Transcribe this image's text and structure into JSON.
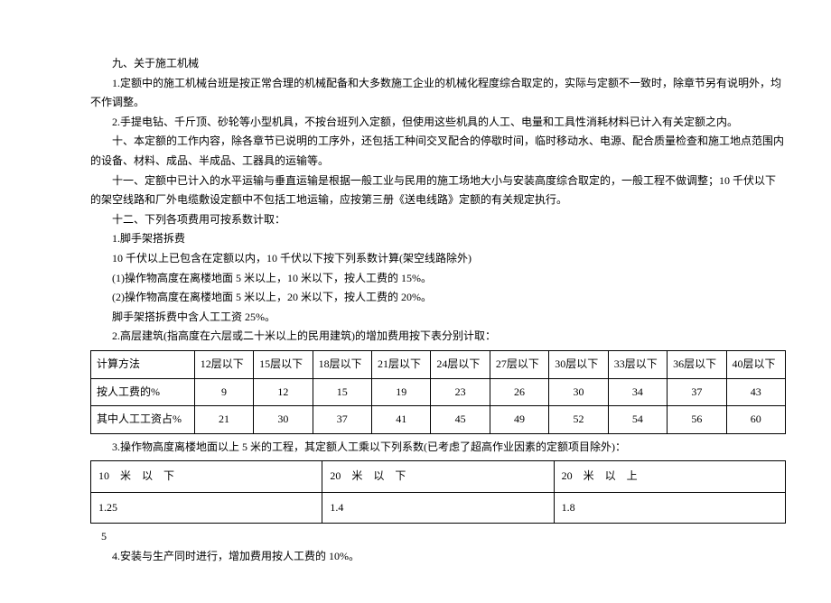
{
  "text": {
    "h9": "九、关于施工机械",
    "p1": "1.定额中的施工机械台班是按正常合理的机械配备和大多数施工企业的机械化程度综合取定的，实际与定额不一致时，除章节另有说明外，均不作调整。",
    "p2": "2.手提电钻、千斤顶、砂轮等小型机具，不按台班列入定额，但使用这些机具的人工、电量和工具性消耗材料已计入有关定额之内。",
    "p10": "十、本定额的工作内容，除各章节已说明的工序外，还包括工种间交叉配合的停歇时间，临时移动水、电源、配合质量检查和施工地点范围内的设备、材料、成品、半成品、工器具的运输等。",
    "p11": "十一、定额中已计入的水平运输与垂直运输是根据一般工业与民用的施工场地大小与安装高度综合取定的，一般工程不做调整；10 千伏以下的架空线路和厂外电缆敷设定额中不包括工地运输，应按第三册《送电线路》定额的有关规定执行。",
    "p12": "十二、下列各项费用可按系数计取：",
    "p12_1": "1.脚手架搭拆费",
    "p12_1a": "10 千伏以上已包含在定额以内，10 千伏以下按下列系数计算(架空线路除外)",
    "p12_1b": "(1)操作物高度在离楼地面 5 米以上，10 米以下，按人工费的 15%。",
    "p12_1c": "(2)操作物高度在离楼地面 5 米以上，20 米以下，按人工费的 20%。",
    "p12_1d": "脚手架搭拆费中含人工工资 25%。",
    "p12_2": "2.高层建筑(指高度在六层或二十米以上的民用建筑)的增加费用按下表分别计取：",
    "p12_3": "3.操作物高度离楼地面以上 5 米的工程，其定额人工乘以下列系数(已考虑了超高作业因素的定额项目除外)：",
    "pagenum": "5",
    "p12_4": "4.安装与生产同时进行，增加费用按人工费的 10%。"
  },
  "table1": {
    "headers": [
      "计算方法",
      "12层以下",
      "15层以下",
      "18层以下",
      "21层以下",
      "24层以下",
      "27层以下",
      "30层以下",
      "33层以下",
      "36层以下",
      "40层以下"
    ],
    "rows": [
      {
        "label": "按人工费的%",
        "values": [
          "9",
          "12",
          "15",
          "19",
          "23",
          "26",
          "30",
          "34",
          "37",
          "43"
        ]
      },
      {
        "label": "其中人工工资占%",
        "values": [
          "21",
          "30",
          "37",
          "41",
          "45",
          "49",
          "52",
          "54",
          "56",
          "60"
        ]
      }
    ]
  },
  "table2": {
    "headers": [
      "10　米　以　下",
      "20　米　以　下",
      "20　米　以　上"
    ],
    "values": [
      "1.25",
      "1.4",
      "1.8"
    ]
  }
}
